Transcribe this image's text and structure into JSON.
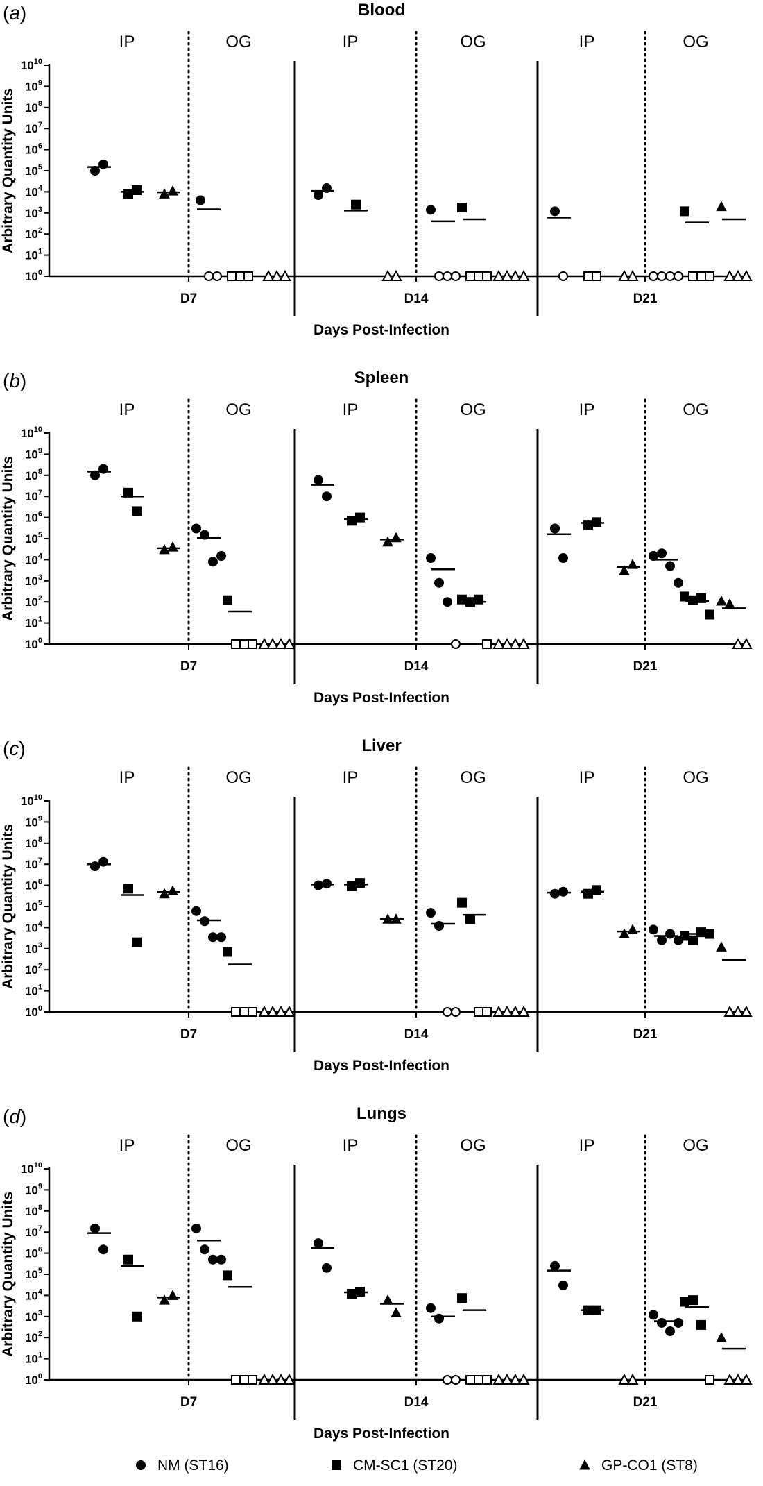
{
  "chart_data": [
    {
      "type": "scatter",
      "panel_label": "a",
      "title": "Blood",
      "xlabel": "Days Post-Infection",
      "ylabel": "Arbitrary Quantity Units",
      "yscale": "log",
      "ylim_exponents": [
        0,
        10
      ],
      "y_tick_base": "10",
      "y_tick_exponents": [
        "0",
        "1",
        "2",
        "3",
        "4",
        "5",
        "6",
        "7",
        "8",
        "9",
        "10"
      ],
      "group_labels": [
        "IP",
        "OG"
      ],
      "days": [
        {
          "label": "D7",
          "IP": {
            "NM": {
              "points": [
                100000,
                200000
              ],
              "mean": 150000
            },
            "CM": {
              "points": [
                8000,
                12000
              ],
              "mean": 10000
            },
            "GP": {
              "points": [
                8000,
                11000
              ],
              "mean": 9500
            }
          },
          "OG": {
            "NM": {
              "points": [
                4000,
                1,
                1
              ],
              "mean": 1500
            },
            "CM": {
              "points": [
                1,
                1,
                1
              ],
              "mean": null
            },
            "GP": {
              "points": [
                1,
                1,
                1
              ],
              "mean": null
            }
          }
        },
        {
          "label": "D14",
          "IP": {
            "NM": {
              "points": [
                7000,
                15000
              ],
              "mean": 11000
            },
            "CM": {
              "points": [
                2500
              ],
              "mean": 1300
            },
            "GP": {
              "points": [
                1,
                1
              ],
              "mean": null
            }
          },
          "OG": {
            "NM": {
              "points": [
                1400,
                1,
                1,
                1
              ],
              "mean": 400
            },
            "CM": {
              "points": [
                1800,
                1,
                1,
                1
              ],
              "mean": 500
            },
            "GP": {
              "points": [
                1,
                1,
                1,
                1
              ],
              "mean": null
            }
          }
        },
        {
          "label": "D21",
          "IP": {
            "NM": {
              "points": [
                1200,
                1
              ],
              "mean": 600
            },
            "CM": {
              "points": [
                1,
                1
              ],
              "mean": null
            },
            "GP": {
              "points": [
                1,
                1
              ],
              "mean": null
            }
          },
          "OG": {
            "NM": {
              "points": [
                1,
                1,
                1,
                1
              ],
              "mean": null
            },
            "CM": {
              "points": [
                1200,
                1,
                1,
                1
              ],
              "mean": 350
            },
            "GP": {
              "points": [
                2000,
                1,
                1,
                1
              ],
              "mean": 500
            }
          }
        }
      ]
    },
    {
      "type": "scatter",
      "panel_label": "b",
      "title": "Spleen",
      "xlabel": "Days Post-Infection",
      "ylabel": "Arbitrary Quantity Units",
      "yscale": "log",
      "ylim_exponents": [
        0,
        10
      ],
      "y_tick_base": "10",
      "y_tick_exponents": [
        "0",
        "1",
        "2",
        "3",
        "4",
        "5",
        "6",
        "7",
        "8",
        "9",
        "10"
      ],
      "group_labels": [
        "IP",
        "OG"
      ],
      "days": [
        {
          "label": "D7",
          "IP": {
            "NM": {
              "points": [
                100000000,
                200000000
              ],
              "mean": 150000000
            },
            "CM": {
              "points": [
                15000000,
                2000000
              ],
              "mean": 10000000
            },
            "GP": {
              "points": [
                30000,
                40000
              ],
              "mean": 35000
            }
          },
          "OG": {
            "NM": {
              "points": [
                300000,
                150000,
                8000,
                15000
              ],
              "mean": 110000
            },
            "CM": {
              "points": [
                120,
                1,
                1,
                1
              ],
              "mean": 35
            },
            "GP": {
              "points": [
                1,
                1,
                1,
                1
              ],
              "mean": null
            }
          }
        },
        {
          "label": "D14",
          "IP": {
            "NM": {
              "points": [
                60000000,
                10000000
              ],
              "mean": 35000000
            },
            "CM": {
              "points": [
                700000,
                1000000
              ],
              "mean": 850000
            },
            "GP": {
              "points": [
                70000,
                110000
              ],
              "mean": 90000
            }
          },
          "OG": {
            "NM": {
              "points": [
                12000,
                800,
                100,
                1
              ],
              "mean": 3500
            },
            "CM": {
              "points": [
                130,
                100,
                130,
                1
              ],
              "mean": 100
            },
            "GP": {
              "points": [
                1,
                1,
                1,
                1
              ],
              "mean": null
            }
          }
        },
        {
          "label": "D21",
          "IP": {
            "NM": {
              "points": [
                300000,
                12000
              ],
              "mean": 160000
            },
            "CM": {
              "points": [
                450000,
                600000
              ],
              "mean": 550000
            },
            "GP": {
              "points": [
                3000,
                6000
              ],
              "mean": 4500
            }
          },
          "OG": {
            "NM": {
              "points": [
                15000,
                20000,
                5000,
                800
              ],
              "mean": 10000
            },
            "CM": {
              "points": [
                180,
                120,
                150,
                25
              ],
              "mean": 110
            },
            "GP": {
              "points": [
                110,
                80,
                1,
                1
              ],
              "mean": 50
            }
          }
        }
      ]
    },
    {
      "type": "scatter",
      "panel_label": "c",
      "title": "Liver",
      "xlabel": "Days Post-Infection",
      "ylabel": "Arbitrary Quantity Units",
      "yscale": "log",
      "ylim_exponents": [
        0,
        10
      ],
      "y_tick_base": "10",
      "y_tick_exponents": [
        "0",
        "1",
        "2",
        "3",
        "4",
        "5",
        "6",
        "7",
        "8",
        "9",
        "10"
      ],
      "group_labels": [
        "IP",
        "OG"
      ],
      "days": [
        {
          "label": "D7",
          "IP": {
            "NM": {
              "points": [
                8000000,
                13000000
              ],
              "mean": 10000000
            },
            "CM": {
              "points": [
                700000,
                2000
              ],
              "mean": 350000
            },
            "GP": {
              "points": [
                400000,
                550000
              ],
              "mean": 480000
            }
          },
          "OG": {
            "NM": {
              "points": [
                60000,
                20000,
                3500,
                3500
              ],
              "mean": 22000
            },
            "CM": {
              "points": [
                700,
                1,
                1,
                1
              ],
              "mean": 180
            },
            "GP": {
              "points": [
                1,
                1,
                1,
                1
              ],
              "mean": null
            }
          }
        },
        {
          "label": "D14",
          "IP": {
            "NM": {
              "points": [
                1000000,
                1200000
              ],
              "mean": 1100000
            },
            "CM": {
              "points": [
                900000,
                1300000
              ],
              "mean": 1100000
            },
            "GP": {
              "points": [
                25000,
                25000
              ],
              "mean": 25000
            }
          },
          "OG": {
            "NM": {
              "points": [
                50000,
                12000,
                1,
                1
              ],
              "mean": 15000
            },
            "CM": {
              "points": [
                150000,
                25000,
                1,
                1
              ],
              "mean": 40000
            },
            "GP": {
              "points": [
                1,
                1,
                1,
                1
              ],
              "mean": null
            }
          }
        },
        {
          "label": "D21",
          "IP": {
            "NM": {
              "points": [
                400000,
                500000
              ],
              "mean": 450000
            },
            "CM": {
              "points": [
                400000,
                600000
              ],
              "mean": 500000
            },
            "GP": {
              "points": [
                5000,
                8000
              ],
              "mean": 6500
            }
          },
          "OG": {
            "NM": {
              "points": [
                8000,
                2500,
                5000,
                2500
              ],
              "mean": 4000
            },
            "CM": {
              "points": [
                4000,
                2500,
                6000,
                5000
              ],
              "mean": 5000
            },
            "GP": {
              "points": [
                1200,
                1,
                1,
                1
              ],
              "mean": 300
            }
          }
        }
      ]
    },
    {
      "type": "scatter",
      "panel_label": "d",
      "title": "Lungs",
      "xlabel": "Days Post-Infection",
      "ylabel": "Arbitrary Quantity Units",
      "yscale": "log",
      "ylim_exponents": [
        0,
        10
      ],
      "y_tick_base": "10",
      "y_tick_exponents": [
        "0",
        "1",
        "2",
        "3",
        "4",
        "5",
        "6",
        "7",
        "8",
        "9",
        "10"
      ],
      "group_labels": [
        "IP",
        "OG"
      ],
      "days": [
        {
          "label": "D7",
          "IP": {
            "NM": {
              "points": [
                15000000,
                1500000
              ],
              "mean": 9000000
            },
            "CM": {
              "points": [
                500000,
                1000
              ],
              "mean": 250000
            },
            "GP": {
              "points": [
                6000,
                10000
              ],
              "mean": 8000
            }
          },
          "OG": {
            "NM": {
              "points": [
                15000000,
                1500000,
                500000,
                500000
              ],
              "mean": 4000000
            },
            "CM": {
              "points": [
                90000,
                1,
                1,
                1
              ],
              "mean": 25000
            },
            "GP": {
              "points": [
                1,
                1,
                1,
                1
              ],
              "mean": null
            }
          }
        },
        {
          "label": "D14",
          "IP": {
            "NM": {
              "points": [
                3000000,
                200000
              ],
              "mean": 1800000
            },
            "CM": {
              "points": [
                12000,
                15000
              ],
              "mean": 14000
            },
            "GP": {
              "points": [
                6000,
                1500
              ],
              "mean": 4000
            }
          },
          "OG": {
            "NM": {
              "points": [
                2500,
                800,
                1,
                1
              ],
              "mean": 1000
            },
            "CM": {
              "points": [
                7500,
                1,
                1,
                1
              ],
              "mean": 2000
            },
            "GP": {
              "points": [
                1,
                1,
                1,
                1
              ],
              "mean": null
            }
          }
        },
        {
          "label": "D21",
          "IP": {
            "NM": {
              "points": [
                250000,
                30000
              ],
              "mean": 150000
            },
            "CM": {
              "points": [
                2000,
                2000
              ],
              "mean": 2000
            },
            "GP": {
              "points": [
                1,
                1
              ],
              "mean": null
            }
          },
          "OG": {
            "NM": {
              "points": [
                1200,
                500,
                200,
                500
              ],
              "mean": 600
            },
            "CM": {
              "points": [
                5000,
                6000,
                400,
                1
              ],
              "mean": 2800
            },
            "GP": {
              "points": [
                100,
                1,
                1,
                1
              ],
              "mean": 30
            }
          }
        }
      ]
    }
  ],
  "legend": [
    {
      "key": "NM",
      "label": "NM (ST16)",
      "marker": "circle"
    },
    {
      "key": "CM",
      "label": "CM-SC1 (ST20)",
      "marker": "square"
    },
    {
      "key": "GP",
      "label": "GP-CO1 (ST8)",
      "marker": "triangle"
    }
  ]
}
